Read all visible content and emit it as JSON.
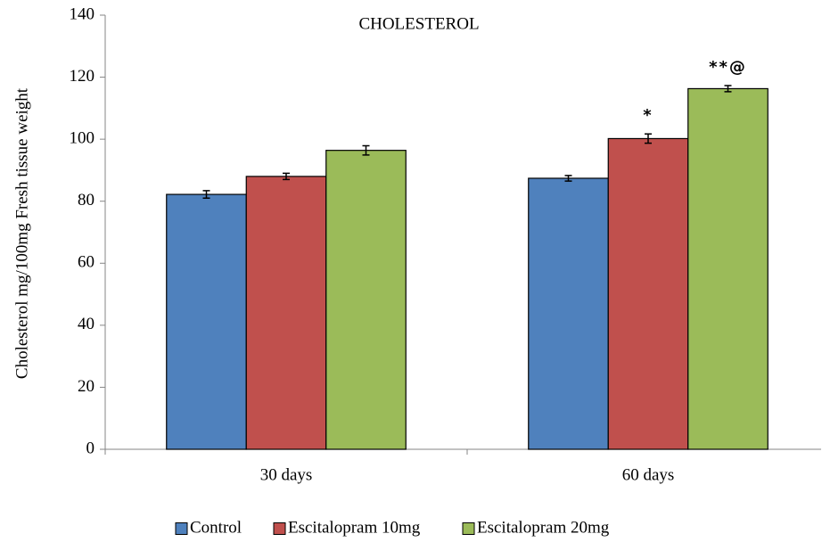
{
  "chart_data": {
    "type": "bar",
    "title": "CHOLESTEROL",
    "y_label": "Cholesterol  mg/100mg  Fresh  tissue weight",
    "categories": [
      "30 days",
      "60 days"
    ],
    "series": [
      {
        "name": "Control",
        "color": "#4f81bd",
        "values": [
          82.2,
          87.4
        ],
        "errors": [
          1.2,
          0.9
        ],
        "annotations": [
          null,
          null
        ]
      },
      {
        "name": "Escitalopram 10mg",
        "color": "#c0504d",
        "values": [
          88,
          100.2
        ],
        "errors": [
          1,
          1.5
        ],
        "annotations": [
          null,
          "*"
        ]
      },
      {
        "name": "Escitalopram 20mg",
        "color": "#9bbb59",
        "values": [
          96.4,
          116.3
        ],
        "errors": [
          1.5,
          1
        ],
        "annotations": [
          null,
          "**@"
        ]
      }
    ],
    "ylim": [
      0,
      140
    ],
    "yticks": [
      0,
      20,
      40,
      60,
      80,
      100,
      120,
      140
    ],
    "grid": false,
    "legend": "bottom"
  }
}
